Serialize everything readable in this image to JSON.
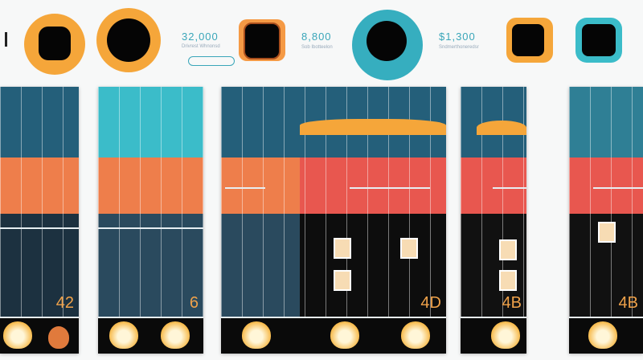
{
  "header": {
    "stat1": {
      "value": "32,000",
      "caption": "Drivrest Whnonsd"
    },
    "stat2": {
      "value": "8,800",
      "caption": "Sob Ibotteelon"
    },
    "stat3": {
      "value": "$1,300",
      "caption": "Sndmerthoneredsr"
    }
  },
  "panels": [
    {
      "label": "42"
    },
    {
      "label": "6"
    },
    {
      "label": ""
    },
    {
      "label": "4D"
    },
    {
      "label": "4B"
    },
    {
      "label": "4B"
    }
  ],
  "colors": {
    "teal": "#245f7a",
    "cyan": "#3bbcc9",
    "orange": "#ee7e4b",
    "red": "#e8574f",
    "dark": "#1c3140",
    "accent": "#f6a53a"
  }
}
